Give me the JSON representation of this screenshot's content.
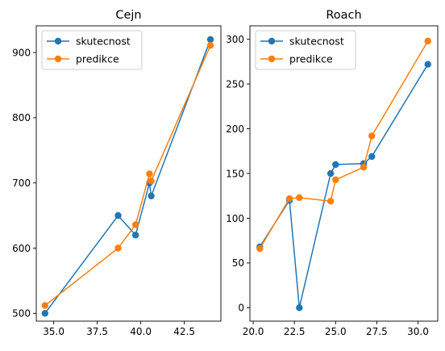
{
  "chart_data": [
    {
      "type": "line",
      "title": "Cejn",
      "xlabel": "",
      "ylabel": "",
      "xlim": [
        34.0,
        44.6
      ],
      "ylim": [
        488,
        941
      ],
      "xticks": [
        35.0,
        37.5,
        40.0,
        42.5
      ],
      "xtick_labels": [
        "35.0",
        "37.5",
        "40.0",
        "42.5"
      ],
      "yticks": [
        500,
        600,
        700,
        800,
        900
      ],
      "ytick_labels": [
        "500",
        "600",
        "700",
        "800",
        "900"
      ],
      "legend": {
        "location": "upper-left"
      },
      "grid": false,
      "series": [
        {
          "name": "skutecnost",
          "color": "#1f77b4",
          "marker": "circle",
          "points": [
            [
              34.5,
              500
            ],
            [
              38.7,
              650
            ],
            [
              39.7,
              620
            ],
            [
              40.5,
              700
            ],
            [
              40.6,
              680
            ],
            [
              44.0,
              920
            ]
          ]
        },
        {
          "name": "predikce",
          "color": "#ff7f0e",
          "marker": "circle",
          "points": [
            [
              34.5,
              512
            ],
            [
              38.7,
              600
            ],
            [
              39.7,
              636
            ],
            [
              40.5,
              714
            ],
            [
              40.6,
              703
            ],
            [
              44.0,
              911
            ]
          ]
        }
      ]
    },
    {
      "type": "line",
      "title": "Roach",
      "xlabel": "",
      "ylabel": "",
      "xlim": [
        19.8,
        31.2
      ],
      "ylim": [
        -15,
        315
      ],
      "xticks": [
        20.0,
        22.5,
        25.0,
        27.5,
        30.0
      ],
      "xtick_labels": [
        "20.0",
        "22.5",
        "25.0",
        "27.5",
        "30.0"
      ],
      "yticks": [
        0,
        50,
        100,
        150,
        200,
        250,
        300
      ],
      "ytick_labels": [
        "0",
        "50",
        "100",
        "150",
        "200",
        "250",
        "300"
      ],
      "legend": {
        "location": "upper-left"
      },
      "grid": false,
      "series": [
        {
          "name": "skutecnost",
          "color": "#1f77b4",
          "marker": "circle",
          "points": [
            [
              20.4,
              68
            ],
            [
              22.2,
              120
            ],
            [
              22.8,
              0
            ],
            [
              24.7,
              150
            ],
            [
              25.0,
              160
            ],
            [
              26.7,
              161
            ],
            [
              27.2,
              169
            ],
            [
              30.6,
              272
            ]
          ]
        },
        {
          "name": "predikce",
          "color": "#ff7f0e",
          "marker": "circle",
          "points": [
            [
              20.4,
              66
            ],
            [
              22.2,
              122
            ],
            [
              22.8,
              123
            ],
            [
              24.7,
              119
            ],
            [
              25.0,
              143
            ],
            [
              26.7,
              157
            ],
            [
              27.2,
              192
            ],
            [
              30.6,
              298
            ]
          ]
        }
      ]
    }
  ]
}
